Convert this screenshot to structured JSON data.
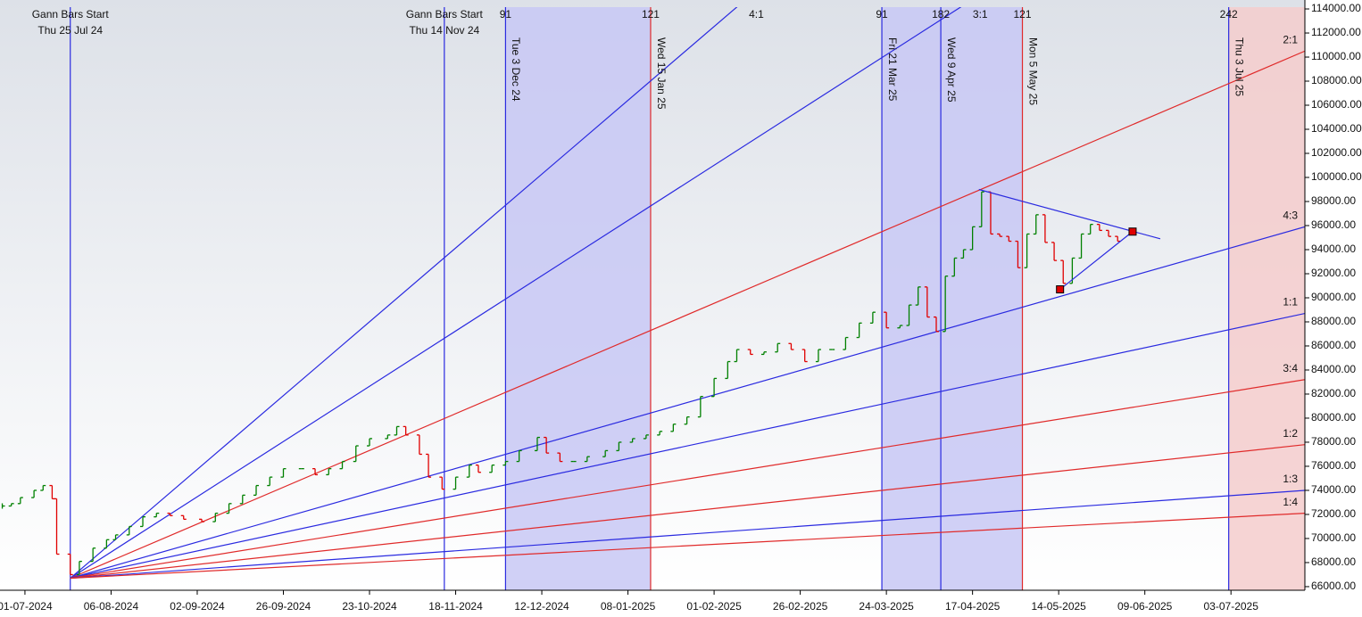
{
  "chart_data": {
    "type": "ohlc",
    "xlim": [
      -5.5,
      282.3
    ],
    "ylim": [
      65700,
      114150
    ],
    "xticks": [
      {
        "value": 0,
        "label": "01-07-2024"
      },
      {
        "value": 19,
        "label": "06-08-2024"
      },
      {
        "value": 38,
        "label": "02-09-2024"
      },
      {
        "value": 57,
        "label": "26-09-2024"
      },
      {
        "value": 76,
        "label": "23-10-2024"
      },
      {
        "value": 95,
        "label": "18-11-2024"
      },
      {
        "value": 114,
        "label": "12-12-2024"
      },
      {
        "value": 133,
        "label": "08-01-2025"
      },
      {
        "value": 152,
        "label": "01-02-2025"
      },
      {
        "value": 171,
        "label": "26-02-2025"
      },
      {
        "value": 190,
        "label": "24-03-2025"
      },
      {
        "value": 209,
        "label": "17-04-2025"
      },
      {
        "value": 228,
        "label": "14-05-2025"
      },
      {
        "value": 247,
        "label": "09-06-2025"
      },
      {
        "value": 266,
        "label": "03-07-2025"
      }
    ],
    "yticks": [
      {
        "value": 66000,
        "label": "66000.00"
      },
      {
        "value": 68000,
        "label": "68000.00"
      },
      {
        "value": 70000,
        "label": "70000.00"
      },
      {
        "value": 72000,
        "label": "72000.00"
      },
      {
        "value": 74000,
        "label": "74000.00"
      },
      {
        "value": 76000,
        "label": "76000.00"
      },
      {
        "value": 78000,
        "label": "78000.00"
      },
      {
        "value": 80000,
        "label": "80000.00"
      },
      {
        "value": 82000,
        "label": "82000.00"
      },
      {
        "value": 84000,
        "label": "84000.00"
      },
      {
        "value": 86000,
        "label": "86000.00"
      },
      {
        "value": 88000,
        "label": "88000.00"
      },
      {
        "value": 90000,
        "label": "90000.00"
      },
      {
        "value": 92000,
        "label": "92000.00"
      },
      {
        "value": 94000,
        "label": "94000.00"
      },
      {
        "value": 96000,
        "label": "96000.00"
      },
      {
        "value": 98000,
        "label": "98000.00"
      },
      {
        "value": 100000,
        "label": "100000.00"
      },
      {
        "value": 102000,
        "label": "102000.00"
      },
      {
        "value": 104000,
        "label": "104000.00"
      },
      {
        "value": 106000,
        "label": "106000.00"
      },
      {
        "value": 108000,
        "label": "108000.00"
      },
      {
        "value": 110000,
        "label": "110000.00"
      },
      {
        "value": 112000,
        "label": "112000.00"
      },
      {
        "value": 114000,
        "label": "114000.00"
      }
    ],
    "price": {
      "up_color": "#008000",
      "down_color": "#e00000",
      "x": [
        -5,
        -3,
        -1,
        2,
        4,
        6,
        7,
        10,
        12,
        15,
        18,
        20,
        23,
        26,
        29,
        32,
        35,
        39,
        42,
        45,
        48,
        51,
        54,
        57,
        61,
        64,
        67,
        70,
        73,
        76,
        80,
        82,
        84,
        87,
        89,
        92,
        95,
        98,
        100,
        103,
        106,
        109,
        113,
        115,
        118,
        121,
        124,
        128,
        131,
        134,
        137,
        140,
        143,
        146,
        149,
        152,
        155,
        157,
        160,
        163,
        166,
        169,
        172,
        175,
        178,
        181,
        184,
        187,
        190,
        193,
        195,
        197,
        199,
        201,
        203,
        205,
        207,
        209,
        211,
        213,
        215,
        217,
        219,
        221,
        223,
        225,
        227,
        229,
        231,
        233,
        235,
        237,
        239,
        241
      ],
      "values": [
        72700,
        72900,
        73400,
        74000,
        74400,
        73300,
        68700,
        67000,
        68100,
        69200,
        69900,
        70300,
        71000,
        71800,
        72100,
        71900,
        71600,
        71400,
        72100,
        72900,
        73600,
        74400,
        75100,
        75800,
        75800,
        75300,
        75800,
        76400,
        77700,
        78300,
        78600,
        79300,
        78600,
        77000,
        75100,
        74100,
        75100,
        76100,
        75500,
        76100,
        76400,
        77300,
        78400,
        77100,
        76400,
        76400,
        76800,
        77300,
        78000,
        78300,
        78600,
        78900,
        79500,
        80100,
        81800,
        83300,
        84700,
        85700,
        85300,
        85500,
        86200,
        85700,
        84700,
        85700,
        85700,
        86700,
        87900,
        88800,
        87500,
        87700,
        89400,
        90900,
        88400,
        87200,
        91800,
        93300,
        94000,
        95900,
        98800,
        95300,
        95100,
        94700,
        92500,
        95300,
        96900,
        94600,
        93100,
        91200,
        93300,
        95300,
        96100,
        95600,
        95100,
        94700
      ]
    },
    "fan": [
      {
        "name": "4:1",
        "color": "#2a2ae0",
        "x": [
          10,
          282.3
        ],
        "values": [
          66700,
          154600
        ]
      },
      {
        "name": "3:1",
        "color": "#2a2ae0",
        "x": [
          10,
          282.3
        ],
        "values": [
          66700,
          132500
        ]
      },
      {
        "name": "2:1",
        "color": "#e02a2a",
        "x": [
          10,
          282.3
        ],
        "values": [
          66700,
          110500
        ]
      },
      {
        "name": "4:3",
        "color": "#2a2ae0",
        "x": [
          10,
          282.3
        ],
        "values": [
          66700,
          95900
        ]
      },
      {
        "name": "1:1",
        "color": "#2a2ae0",
        "x": [
          10,
          282.3
        ],
        "values": [
          66700,
          88700
        ]
      },
      {
        "name": "3:4",
        "color": "#e02a2a",
        "x": [
          10,
          282.3
        ],
        "values": [
          66700,
          83200
        ]
      },
      {
        "name": "1:2",
        "color": "#e02a2a",
        "x": [
          10,
          282.3
        ],
        "values": [
          66700,
          77800
        ]
      },
      {
        "name": "1:3",
        "color": "#2a2ae0",
        "x": [
          10,
          282.3
        ],
        "values": [
          66700,
          74000
        ]
      },
      {
        "name": "1:4",
        "color": "#e02a2a",
        "x": [
          10,
          282.3
        ],
        "values": [
          66700,
          72100
        ]
      }
    ],
    "bands": [
      {
        "x": [
          106,
          138
        ],
        "color": "#c8c8f4"
      },
      {
        "x": [
          189,
          220
        ],
        "color": "#c8c8f4"
      },
      {
        "x": [
          265.5,
          282.3
        ],
        "color": "#f4cccc"
      }
    ],
    "cycle_lines": [
      {
        "x": 10,
        "color": "#2a2ae0",
        "header": "Gann Bars Start",
        "date": "Thu 25 Jul 24"
      },
      {
        "x": 92.5,
        "color": "#2a2ae0",
        "header": "Gann Bars Start",
        "date": "Thu 14 Nov 24"
      },
      {
        "x": 106,
        "color": "#2a2ae0",
        "count": "91",
        "date": "Tue 3 Dec 24"
      },
      {
        "x": 138,
        "color": "#e02a2a",
        "count": "121",
        "date": "Wed 15 Jan 25"
      },
      {
        "x": 189,
        "color": "#2a2ae0",
        "count": "91",
        "date": "Fri 21 Mar 25"
      },
      {
        "x": 202,
        "color": "#2a2ae0",
        "count": "182",
        "date": "Wed 9 Apr 25"
      },
      {
        "x": 220,
        "color": "#e02a2a",
        "count": "121",
        "date": "Mon 5 May 25"
      },
      {
        "x": 265.5,
        "color": "#2a2ae0",
        "count": "242",
        "date": "Thu 3 Jul 25"
      }
    ],
    "triangle": {
      "color": "#2a2ae0",
      "marker_color": "#e00000",
      "upper": {
        "x": [
          210.4,
          250.4
        ],
        "values": [
          99000,
          94900
        ]
      },
      "lower": {
        "x": [
          228.3,
          244.3
        ],
        "values": [
          90700,
          95500
        ]
      }
    }
  }
}
